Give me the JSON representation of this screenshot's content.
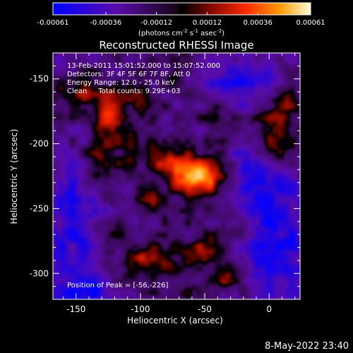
{
  "chart_data": {
    "type": "heatmap",
    "title": "Reconstructed RHESSI Image",
    "xlabel": "Heliocentric X (arcsec)",
    "ylabel": "Heliocentric Y (arcsec)",
    "xlim": [
      -168,
      24
    ],
    "ylim": [
      -320,
      -130
    ],
    "xticks": [
      -150,
      -100,
      -50,
      0
    ],
    "yticks": [
      -150,
      -200,
      -250,
      -300
    ],
    "colorbar": {
      "min": -0.00061,
      "max": 0.00061,
      "ticks": [
        "-0.00061",
        "-0.00036",
        "-0.00012",
        "0.00012",
        "0.00036",
        "0.00061"
      ],
      "unit_main": "(photons cm",
      "unit_exp1": "-2",
      "unit_mid": " s",
      "unit_exp2": "-1",
      "unit_tail": " asec",
      "unit_exp3": "-2",
      "unit_end": ")"
    },
    "annotations": [
      "13-Feb-2011 15:01:52.000 to 15:07:52.000",
      "Detectors: 3F 4F 5F 6F 7F 8F, Att 0",
      "Energy Range: 12.0 - 25.0 keV",
      "Clean     Total counts: 9.29E+03"
    ],
    "peak_label": "Position of Peak = [-56,-226]",
    "peak": [
      -56,
      -226
    ],
    "sources": [
      {
        "x": -56,
        "y": -226,
        "amp": 0.00061,
        "sx": 14,
        "sy": 11
      },
      {
        "x": -78,
        "y": -213,
        "amp": 0.00028,
        "sx": 10,
        "sy": 9
      },
      {
        "x": -125,
        "y": -178,
        "amp": 0.00042,
        "sx": 8,
        "sy": 11
      },
      {
        "x": -130,
        "y": -215,
        "amp": 0.00034,
        "sx": 10,
        "sy": 12
      },
      {
        "x": -140,
        "y": -160,
        "amp": 0.00028,
        "sx": 14,
        "sy": 10
      },
      {
        "x": -105,
        "y": -165,
        "amp": 0.00026,
        "sx": 10,
        "sy": 8
      },
      {
        "x": -105,
        "y": -205,
        "amp": 0.00022,
        "sx": 9,
        "sy": 10
      },
      {
        "x": 5,
        "y": -195,
        "amp": 0.00036,
        "sx": 12,
        "sy": 16
      },
      {
        "x": 12,
        "y": -168,
        "amp": 0.00024,
        "sx": 9,
        "sy": 8
      },
      {
        "x": -25,
        "y": -260,
        "amp": 0.0002,
        "sx": 10,
        "sy": 8
      },
      {
        "x": -45,
        "y": -285,
        "amp": 0.00026,
        "sx": 12,
        "sy": 10
      },
      {
        "x": -90,
        "y": -290,
        "amp": 0.0003,
        "sx": 18,
        "sy": 11
      },
      {
        "x": -120,
        "y": -268,
        "amp": 0.00022,
        "sx": 10,
        "sy": 8
      },
      {
        "x": -30,
        "y": -305,
        "amp": 0.00028,
        "sx": 9,
        "sy": 8
      },
      {
        "x": -65,
        "y": -315,
        "amp": 0.0002,
        "sx": 10,
        "sy": 6
      },
      {
        "x": -90,
        "y": -245,
        "amp": 0.00018,
        "sx": 8,
        "sy": 7
      },
      {
        "x": -80,
        "y": -150,
        "amp": 0.00016,
        "sx": 8,
        "sy": 7
      },
      {
        "x": -40,
        "y": -180,
        "amp": 0.00014,
        "sx": 7,
        "sy": 7
      }
    ],
    "negative_regions": [
      {
        "x": -150,
        "y": -270,
        "amp": -0.0003,
        "sx": 18,
        "sy": 40
      },
      {
        "x": 5,
        "y": -280,
        "amp": -0.00034,
        "sx": 22,
        "sy": 40
      },
      {
        "x": -20,
        "y": -150,
        "amp": -0.00028,
        "sx": 18,
        "sy": 16
      },
      {
        "x": -10,
        "y": -225,
        "amp": -0.00026,
        "sx": 14,
        "sy": 18
      },
      {
        "x": -140,
        "y": -315,
        "amp": -0.00024,
        "sx": 16,
        "sy": 8
      }
    ]
  },
  "timestamp": "8-May-2022 23:40"
}
